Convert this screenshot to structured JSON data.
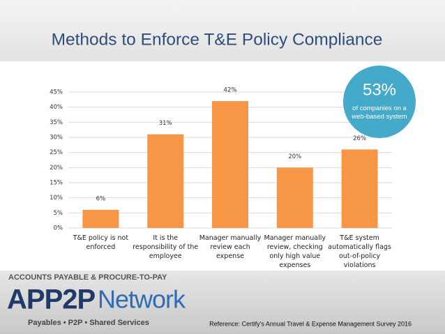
{
  "chart_data": {
    "type": "bar",
    "title": "Methods to Enforce T&E Policy Compliance",
    "categories": [
      "T&E policy is not enforced",
      "It is the responsibility of the employee",
      "Manager manually review each expense",
      "Manager manually review, checking only high value expenses",
      "T&E system automatically flags out-of-policy violations"
    ],
    "values": [
      6,
      31,
      42,
      20,
      26
    ],
    "value_labels": [
      "6%",
      "31%",
      "42%",
      "20%",
      "26%"
    ],
    "color": "#f79646",
    "ylim": [
      0,
      45
    ],
    "yticks": [
      {
        "value": 0,
        "label": "0%"
      },
      {
        "value": 5,
        "label": "5%"
      },
      {
        "value": 10,
        "label": "10%"
      },
      {
        "value": 15,
        "label": "15%"
      },
      {
        "value": 20,
        "label": "20%"
      },
      {
        "value": 25,
        "label": "25%"
      },
      {
        "value": 30,
        "label": "30%"
      },
      {
        "value": 35,
        "label": "35%"
      },
      {
        "value": 40,
        "label": "40%"
      },
      {
        "value": 45,
        "label": "45%"
      }
    ],
    "grid": true,
    "annotation": {
      "headline": "53%",
      "text": "of companies on a web-based system"
    }
  },
  "footer": {
    "logo_top": "ACCOUNTS PAYABLE & PROCURE-TO-PAY",
    "logo_main": "APP2P",
    "logo_second": "Network",
    "logo_tagline": "Payables • P2P • Shared Services",
    "reference": "Reference: Certify's Annual Travel & Expense Management Survey 2016"
  }
}
